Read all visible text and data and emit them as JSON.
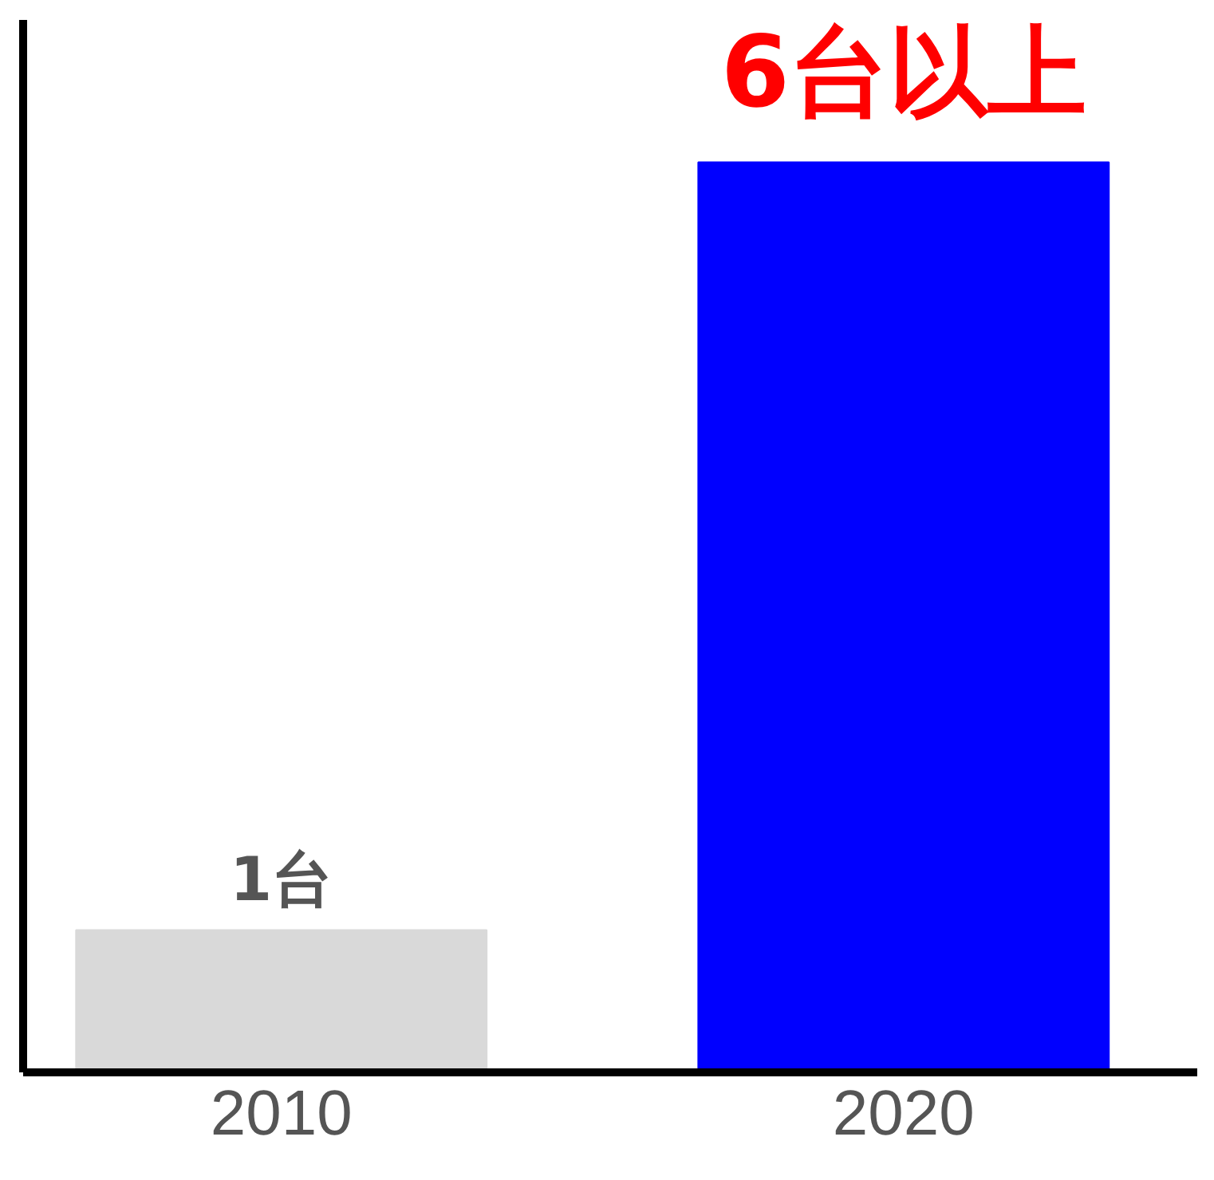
{
  "chart_data": {
    "type": "bar",
    "categories": [
      "2010",
      "2020"
    ],
    "values": [
      1,
      6.4
    ],
    "colors": [
      "#d9d9d9",
      "#0000ff"
    ],
    "value_labels": [
      "1台",
      "6台以上"
    ],
    "ylim": [
      0,
      7.4
    ],
    "tick_labels": "x",
    "grid": false
  }
}
